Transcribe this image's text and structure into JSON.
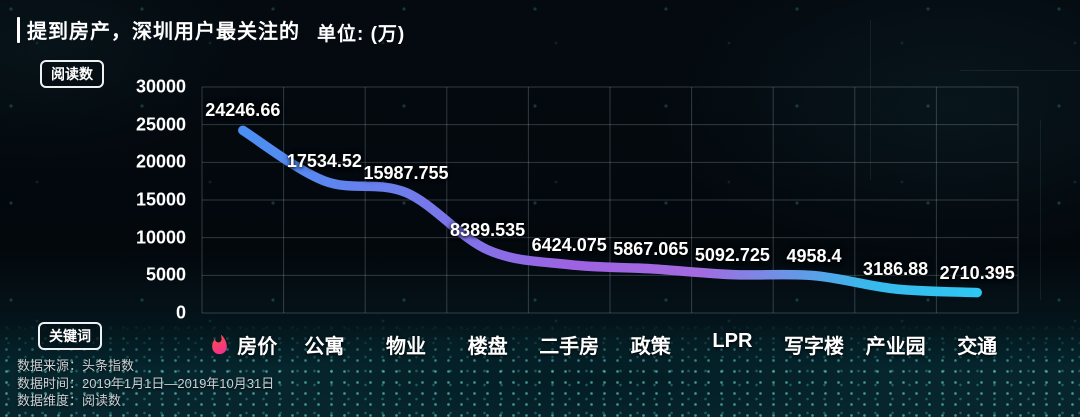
{
  "header": {
    "title": "提到房产，深圳用户最关注的",
    "unit": "单位: (万)"
  },
  "badges": {
    "y_axis": "阅读数",
    "x_axis": "关键词"
  },
  "footer": {
    "lines": [
      "数据来源：头条指数",
      "数据时间：2019年1月1日—2019年10月31日",
      "数据维度：阅读数"
    ]
  },
  "chart_data": {
    "type": "line",
    "title": "提到房产，深圳用户最关注的",
    "unit_label": "单位: (万)",
    "categories": [
      "房价",
      "公寓",
      "物业",
      "楼盘",
      "二手房",
      "政策",
      "LPR",
      "写字楼",
      "产业园",
      "交通"
    ],
    "values": [
      24246.66,
      17534.52,
      15987.755,
      8389.535,
      6424.075,
      5867.065,
      5092.725,
      4958.4,
      3186.88,
      2710.395
    ],
    "ylabel": "阅读数",
    "xlabel": "关键词",
    "ylim": [
      0,
      30000
    ],
    "y_ticks": [
      0,
      5000,
      10000,
      15000,
      20000,
      25000,
      30000
    ],
    "grid": true,
    "legend": false,
    "hot_category_index": 0,
    "hot_icon": "flame-icon",
    "colors": {
      "line_gradient": [
        "#4a90f2",
        "#6f7cec",
        "#9e62e2",
        "#a46ae0",
        "#38b9ec",
        "#2fc7f3"
      ],
      "flame_gradient": [
        "#ff5340",
        "#ef2f8f"
      ],
      "grid": "rgba(185,200,212,0.25)",
      "text": "#ffffff"
    }
  }
}
